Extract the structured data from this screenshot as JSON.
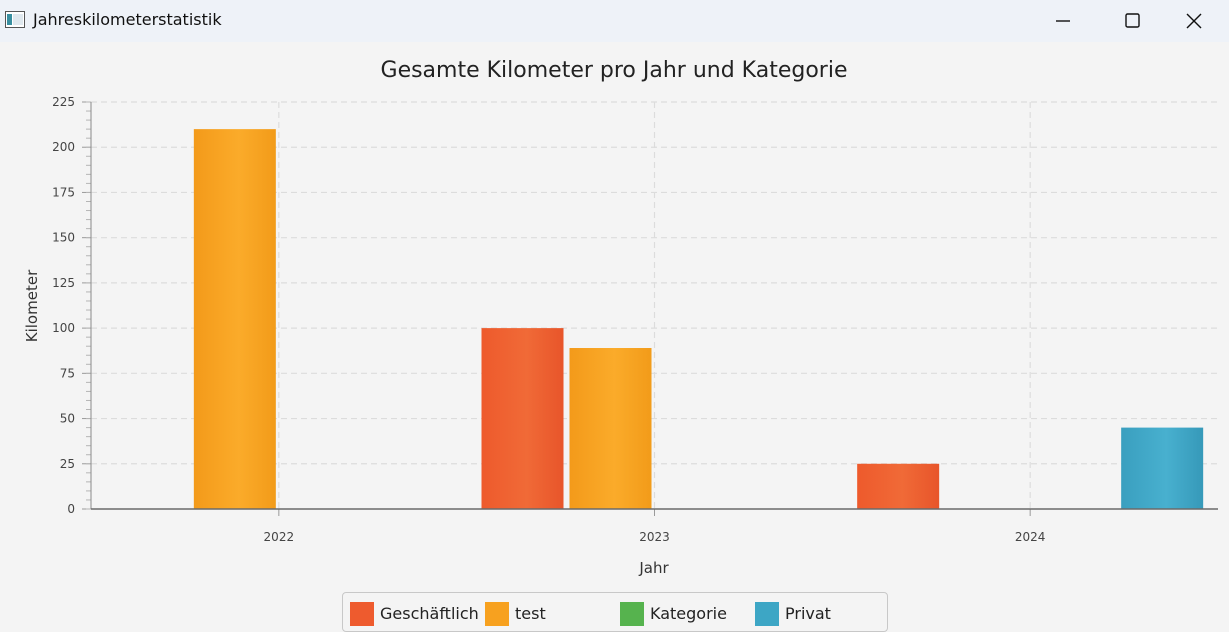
{
  "window": {
    "title": "Jahreskilometerstatistik",
    "controls": [
      "minimize-icon",
      "maximize-icon",
      "close-icon"
    ]
  },
  "colors": {
    "Geschäftlich": "#ee5b2e",
    "test": "#f7a11f",
    "Kategorie": "#56b34e",
    "Privat": "#3da6c5"
  },
  "chart_data": {
    "type": "bar",
    "title": "Gesamte Kilometer pro Jahr und Kategorie",
    "xlabel": "Jahr",
    "ylabel": "Kilometer",
    "categories": [
      "2022",
      "2023",
      "2024"
    ],
    "ylim": [
      0,
      225
    ],
    "yticks": [
      0,
      25,
      50,
      75,
      100,
      125,
      150,
      175,
      200,
      225
    ],
    "grid": true,
    "legend_position": "bottom",
    "series": [
      {
        "name": "Geschäftlich",
        "values": [
          0,
          100,
          25
        ]
      },
      {
        "name": "test",
        "values": [
          210,
          89,
          0
        ]
      },
      {
        "name": "Kategorie",
        "values": [
          0,
          0,
          0
        ]
      },
      {
        "name": "Privat",
        "values": [
          0,
          0,
          45
        ]
      }
    ]
  }
}
